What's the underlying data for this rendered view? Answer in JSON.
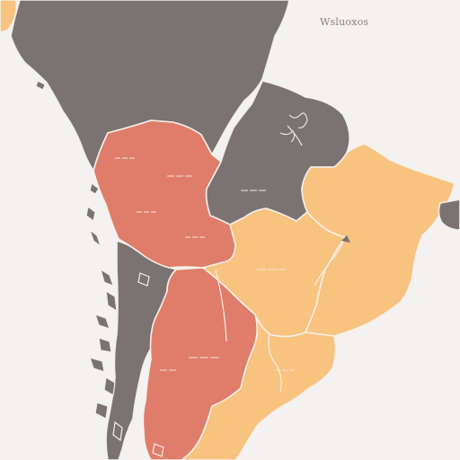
{
  "map": {
    "title": "Wsluoxos",
    "colors": {
      "ocean": "#f3f2f0",
      "gray": "#7b7272",
      "salmon": "#e07c6a",
      "peach": "#f8c27f",
      "border": "#f5efe8"
    },
    "regions": [
      {
        "id": "north-gray",
        "color": "#7b7272",
        "label": ""
      },
      {
        "id": "east-gray",
        "color": "#7b7272",
        "label": ""
      },
      {
        "id": "central-gray",
        "color": "#7b7272",
        "label": ""
      },
      {
        "id": "west-salmon",
        "color": "#e07c6a",
        "label": ""
      },
      {
        "id": "south-salmon",
        "color": "#e07c6a",
        "label": ""
      },
      {
        "id": "central-peach",
        "color": "#f8c27f",
        "label": ""
      },
      {
        "id": "east-peach",
        "color": "#f8c27f",
        "label": ""
      },
      {
        "id": "south-peach",
        "color": "#f8c27f",
        "label": ""
      },
      {
        "id": "far-east-gray",
        "color": "#7b7272",
        "label": ""
      }
    ]
  }
}
